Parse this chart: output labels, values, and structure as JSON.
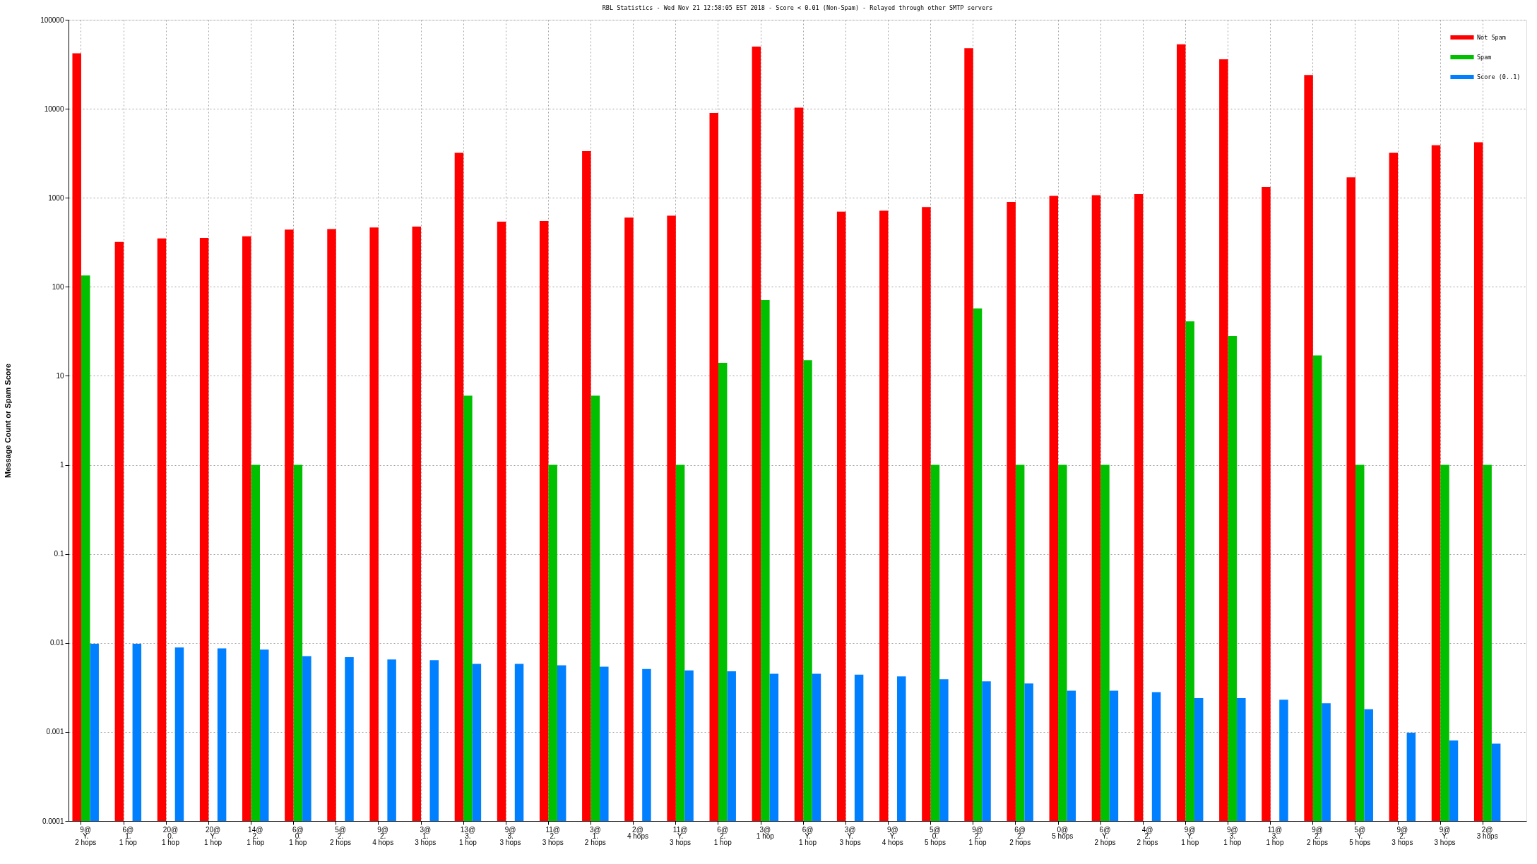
{
  "chart_data": {
    "type": "bar",
    "title": "RBL Statistics - Wed Nov 21 12:58:05 EST 2018 - Score < 0.01 (Non-Spam) - Relayed through other SMTP servers",
    "ylabel": "Message Count or Spam Score",
    "categories": [
      "9@\nY.\n2 hops",
      "6@\n1.\n1 hop",
      "20@\n0.\n1 hop",
      "20@\nY.\n1 hop",
      "14@\n2.\n1 hop",
      "6@\n0.\n1 hop",
      "5@\n2.\n2 hops",
      "9@\n2.\n4 hops",
      "3@\n1.\n3 hops",
      "13@\n3.\n1 hop",
      "9@\n3.\n3 hops",
      "11@\n2.\n3 hops",
      "3@\n1.\n2 hops",
      "2@\n4 hops",
      "11@\nY.\n3 hops",
      "6@\n2.\n1 hop",
      "3@\n1 hop",
      "6@\nY.\n1 hop",
      "3@\nY.\n3 hops",
      "9@\nY.\n4 hops",
      "5@\n0.\n5 hops",
      "9@\n2.\n1 hop",
      "6@\n2.\n2 hops",
      "0@\n5 hops",
      "6@\nY.\n2 hops",
      "4@\n2.\n2 hops",
      "9@\nY.\n1 hop",
      "9@\n3.\n1 hop",
      "11@\n3.\n1 hop",
      "9@\n2.\n2 hops",
      "5@\nY.\n5 hops",
      "9@\n2.\n3 hops",
      "9@\nY.\n3 hops",
      "2@\n3 hops"
    ],
    "series": [
      {
        "name": "Not Spam",
        "color": "#ff0000",
        "values": [
          42000,
          320,
          350,
          355,
          370,
          440,
          445,
          465,
          475,
          3200,
          540,
          550,
          3350,
          600,
          630,
          9000,
          50000,
          10300,
          700,
          715,
          790,
          48000,
          900,
          1050,
          1070,
          1100,
          53000,
          36000,
          1320,
          24000,
          1700,
          3200,
          3900,
          4200
        ]
      },
      {
        "name": "Spam",
        "color": "#00c000",
        "values": [
          134,
          null,
          null,
          null,
          1,
          1,
          null,
          null,
          null,
          6,
          null,
          1,
          6,
          null,
          1,
          14,
          71,
          15,
          null,
          null,
          1,
          57,
          1,
          1,
          1,
          null,
          41,
          28,
          null,
          17,
          1,
          null,
          1,
          1
        ]
      },
      {
        "name": "Score (0..1)",
        "color": "#0080ff",
        "values": [
          0.0098,
          0.0098,
          0.0089,
          0.0087,
          0.0084,
          0.0071,
          0.0069,
          0.0065,
          0.0064,
          0.0058,
          0.0058,
          0.0056,
          0.0054,
          0.0051,
          0.0049,
          0.0048,
          0.0045,
          0.0045,
          0.0044,
          0.0042,
          0.0039,
          0.0037,
          0.0035,
          0.0029,
          0.0029,
          0.0028,
          0.0024,
          0.0024,
          0.0023,
          0.0021,
          0.0018,
          0.00098,
          0.0008,
          0.00074
        ]
      }
    ],
    "log": "y",
    "ylim": [
      0.0001,
      100000
    ],
    "yticks": [
      0.0001,
      0.001,
      0.01,
      0.1,
      1,
      10,
      100,
      1000,
      10000,
      100000
    ],
    "grid": true,
    "legend": "top right"
  }
}
